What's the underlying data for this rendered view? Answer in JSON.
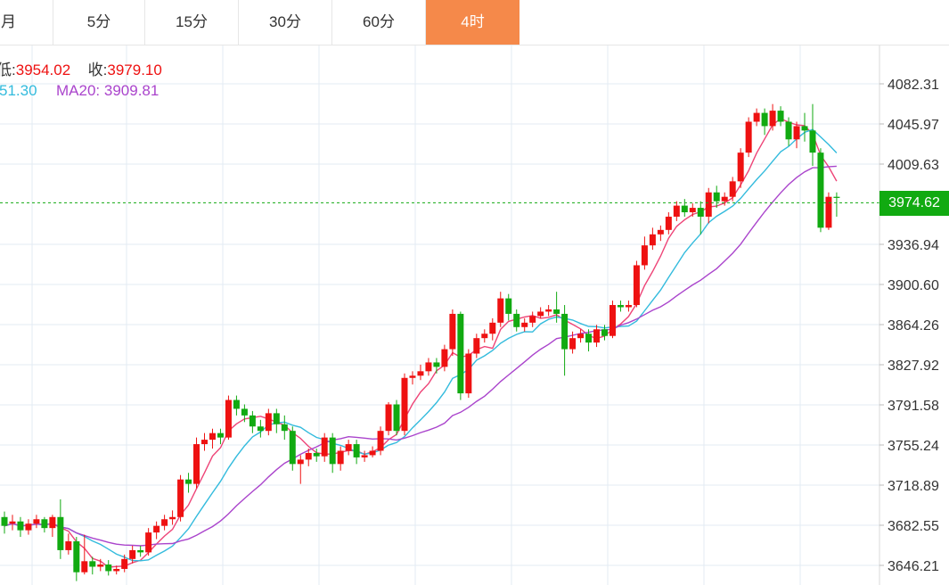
{
  "tabs": [
    {
      "label": "月",
      "active": false
    },
    {
      "label": "5分",
      "active": false
    },
    {
      "label": "15分",
      "active": false
    },
    {
      "label": "30分",
      "active": false
    },
    {
      "label": "60分",
      "active": false
    },
    {
      "label": "4时",
      "active": true
    }
  ],
  "info": {
    "low_label": "低:",
    "low_value": "3954.02",
    "close_label": "收:",
    "close_value": "3979.10",
    "ma_short_value": "51.30",
    "ma20_label": "MA20:",
    "ma20_value": "3909.81"
  },
  "current_price_label": "3974.62",
  "colors": {
    "up": "#ee1111",
    "down": "#11aa11",
    "ma_fast": "#ee4477",
    "ma_mid": "#33bbdd",
    "ma20": "#aa44cc",
    "active_tab": "#f5894a",
    "price_line": "#11aa11",
    "grid": "#e3ebf3"
  },
  "chart_data": {
    "type": "candlestick",
    "y_ticks": [
      "4082.31",
      "4045.97",
      "4009.63",
      "3974.62",
      "3936.94",
      "3900.60",
      "3864.26",
      "3827.92",
      "3791.58",
      "3755.24",
      "3718.89",
      "3682.55",
      "3646.21"
    ],
    "ylim": [
      3637.0,
      4096.0
    ],
    "current_price": 3974.62,
    "candles": [
      [
        3690,
        3682,
        3695,
        3675
      ],
      [
        3684,
        3686,
        3692,
        3678
      ],
      [
        3686,
        3678,
        3690,
        3672
      ],
      [
        3678,
        3684,
        3688,
        3674
      ],
      [
        3684,
        3688,
        3692,
        3680
      ],
      [
        3688,
        3680,
        3690,
        3676
      ],
      [
        3680,
        3690,
        3692,
        3672
      ],
      [
        3690,
        3660,
        3706,
        3652
      ],
      [
        3660,
        3668,
        3675,
        3656
      ],
      [
        3668,
        3640,
        3672,
        3632
      ],
      [
        3640,
        3650,
        3674,
        3638
      ],
      [
        3650,
        3645,
        3654,
        3638
      ],
      [
        3645,
        3647,
        3652,
        3641
      ],
      [
        3647,
        3641,
        3651,
        3637
      ],
      [
        3641,
        3643,
        3646,
        3638
      ],
      [
        3643,
        3652,
        3656,
        3640
      ],
      [
        3652,
        3660,
        3664,
        3648
      ],
      [
        3660,
        3658,
        3664,
        3654
      ],
      [
        3658,
        3676,
        3680,
        3655
      ],
      [
        3676,
        3682,
        3686,
        3670
      ],
      [
        3682,
        3688,
        3692,
        3678
      ],
      [
        3688,
        3690,
        3696,
        3683
      ],
      [
        3690,
        3724,
        3728,
        3686
      ],
      [
        3724,
        3720,
        3730,
        3712
      ],
      [
        3720,
        3756,
        3762,
        3716
      ],
      [
        3756,
        3760,
        3766,
        3750
      ],
      [
        3760,
        3766,
        3770,
        3752
      ],
      [
        3766,
        3762,
        3770,
        3756
      ],
      [
        3762,
        3796,
        3800,
        3760
      ],
      [
        3796,
        3788,
        3800,
        3782
      ],
      [
        3788,
        3782,
        3792,
        3776
      ],
      [
        3782,
        3772,
        3786,
        3766
      ],
      [
        3772,
        3768,
        3778,
        3762
      ],
      [
        3768,
        3784,
        3788,
        3764
      ],
      [
        3784,
        3774,
        3788,
        3766
      ],
      [
        3774,
        3768,
        3782,
        3760
      ],
      [
        3768,
        3738,
        3772,
        3732
      ],
      [
        3738,
        3742,
        3746,
        3720
      ],
      [
        3742,
        3748,
        3752,
        3736
      ],
      [
        3748,
        3745,
        3752,
        3740
      ],
      [
        3745,
        3762,
        3766,
        3740
      ],
      [
        3762,
        3738,
        3766,
        3730
      ],
      [
        3738,
        3750,
        3754,
        3732
      ],
      [
        3750,
        3756,
        3760,
        3746
      ],
      [
        3756,
        3744,
        3760,
        3738
      ],
      [
        3744,
        3746,
        3750,
        3740
      ],
      [
        3746,
        3750,
        3754,
        3744
      ],
      [
        3750,
        3768,
        3772,
        3746
      ],
      [
        3768,
        3792,
        3794,
        3764
      ],
      [
        3792,
        3768,
        3796,
        3764
      ],
      [
        3768,
        3816,
        3820,
        3764
      ],
      [
        3816,
        3818,
        3822,
        3810
      ],
      [
        3818,
        3822,
        3828,
        3814
      ],
      [
        3822,
        3830,
        3834,
        3818
      ],
      [
        3830,
        3826,
        3834,
        3820
      ],
      [
        3826,
        3842,
        3846,
        3822
      ],
      [
        3842,
        3874,
        3878,
        3836
      ],
      [
        3874,
        3802,
        3876,
        3796
      ],
      [
        3802,
        3838,
        3842,
        3798
      ],
      [
        3838,
        3852,
        3856,
        3834
      ],
      [
        3852,
        3856,
        3860,
        3848
      ],
      [
        3856,
        3866,
        3870,
        3850
      ],
      [
        3866,
        3888,
        3894,
        3862
      ],
      [
        3888,
        3874,
        3892,
        3868
      ],
      [
        3874,
        3862,
        3878,
        3858
      ],
      [
        3862,
        3866,
        3870,
        3858
      ],
      [
        3866,
        3872,
        3876,
        3862
      ],
      [
        3872,
        3876,
        3880,
        3870
      ],
      [
        3876,
        3878,
        3882,
        3872
      ],
      [
        3878,
        3874,
        3894,
        3866
      ],
      [
        3874,
        3842,
        3882,
        3818
      ],
      [
        3842,
        3852,
        3858,
        3838
      ],
      [
        3852,
        3856,
        3860,
        3848
      ],
      [
        3856,
        3848,
        3860,
        3840
      ],
      [
        3848,
        3860,
        3864,
        3844
      ],
      [
        3860,
        3854,
        3864,
        3850
      ],
      [
        3854,
        3882,
        3886,
        3852
      ],
      [
        3882,
        3880,
        3886,
        3876
      ],
      [
        3880,
        3882,
        3886,
        3876
      ],
      [
        3882,
        3918,
        3922,
        3880
      ],
      [
        3918,
        3936,
        3944,
        3914
      ],
      [
        3936,
        3946,
        3952,
        3932
      ],
      [
        3946,
        3950,
        3954,
        3940
      ],
      [
        3950,
        3962,
        3966,
        3946
      ],
      [
        3962,
        3972,
        3976,
        3958
      ],
      [
        3972,
        3966,
        3978,
        3962
      ],
      [
        3966,
        3970,
        3974,
        3962
      ],
      [
        3970,
        3962,
        3976,
        3946
      ],
      [
        3962,
        3984,
        3988,
        3956
      ],
      [
        3984,
        3976,
        3990,
        3970
      ],
      [
        3976,
        3980,
        3984,
        3972
      ],
      [
        3980,
        3994,
        3998,
        3976
      ],
      [
        3994,
        4020,
        4024,
        3988
      ],
      [
        4020,
        4048,
        4052,
        4016
      ],
      [
        4048,
        4056,
        4060,
        4044
      ],
      [
        4056,
        4044,
        4060,
        4036
      ],
      [
        4044,
        4058,
        4064,
        4040
      ],
      [
        4058,
        4048,
        4062,
        4044
      ],
      [
        4048,
        4032,
        4052,
        4026
      ],
      [
        4032,
        4044,
        4048,
        4024
      ],
      [
        4044,
        4040,
        4056,
        4030
      ],
      [
        4040,
        4020,
        4064,
        4008
      ],
      [
        4020,
        3952,
        4024,
        3948
      ],
      [
        3952,
        3980,
        3984,
        3950
      ],
      [
        3980,
        3979,
        3984,
        3962
      ]
    ]
  }
}
